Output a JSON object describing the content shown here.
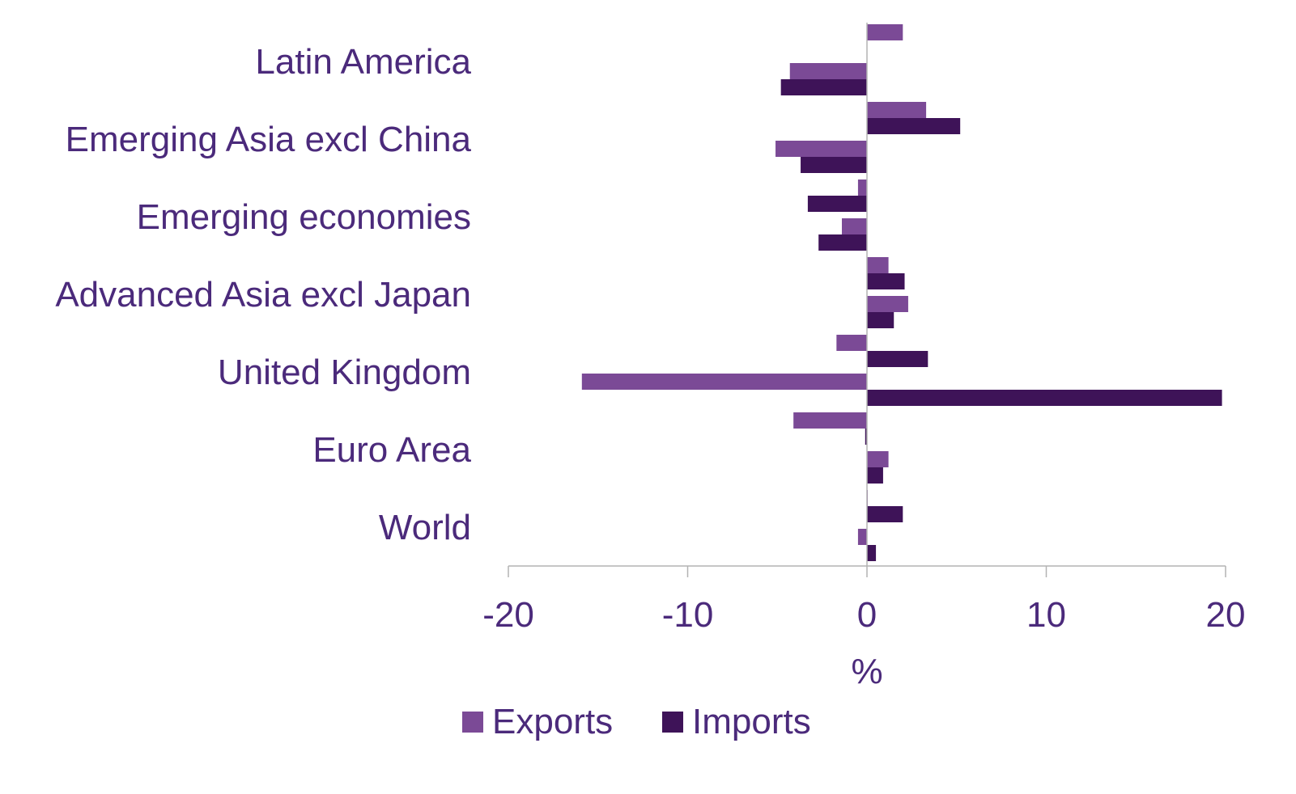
{
  "chart_data": {
    "type": "bar",
    "orientation": "horizontal",
    "title": "",
    "xlabel": "%",
    "ylabel": "",
    "xlim": [
      -20,
      20
    ],
    "x_ticks": [
      -20,
      -10,
      0,
      10,
      20
    ],
    "x_tick_labels": [
      "-20",
      "-10",
      "0",
      "10",
      "20"
    ],
    "grid": false,
    "legend_position": "bottom",
    "categories": [
      "Latin America",
      "Emerging Asia excl China",
      "Emerging economies",
      "Advanced Asia excl Japan",
      "United Kingdom",
      "Euro Area",
      "World"
    ],
    "series": [
      {
        "name": "Exports",
        "color": "#7b4a96",
        "values": [
          [
            2.0,
            -4.3
          ],
          [
            3.3,
            -5.1
          ],
          [
            -0.5,
            -1.4
          ],
          [
            1.2,
            2.3
          ],
          [
            -1.7,
            -15.9
          ],
          [
            -4.1,
            1.2
          ],
          [
            0.0,
            -0.5
          ]
        ]
      },
      {
        "name": "Imports",
        "color": "#3e1358",
        "values": [
          [
            null,
            -4.8
          ],
          [
            5.2,
            -3.7
          ],
          [
            -3.3,
            -2.7
          ],
          [
            2.1,
            1.5
          ],
          [
            3.4,
            19.8
          ],
          [
            -0.1,
            0.9
          ],
          [
            2.0,
            0.5
          ]
        ]
      }
    ]
  }
}
